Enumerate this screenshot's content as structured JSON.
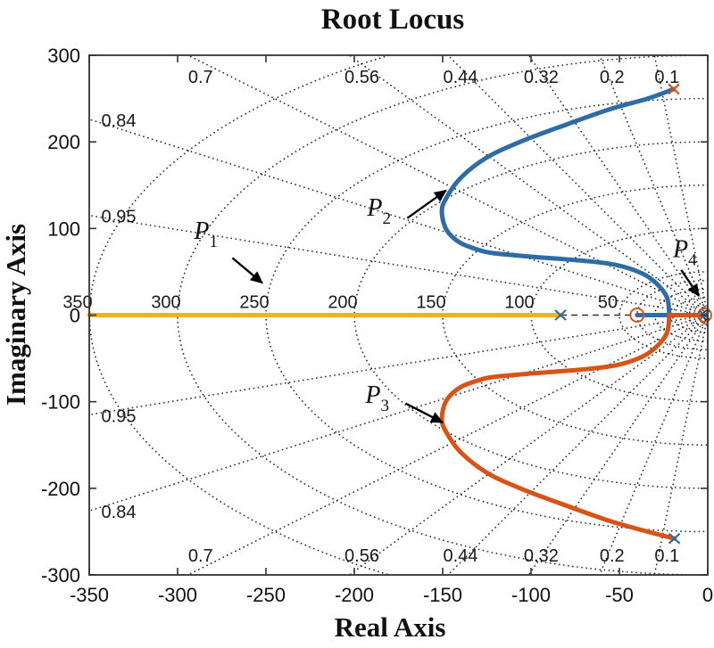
{
  "chart_data": {
    "type": "line",
    "title": "Root Locus",
    "xlabel": "Real Axis",
    "ylabel": "Imaginary Axis",
    "xlim": [
      -350,
      0
    ],
    "ylim": [
      -300,
      300
    ],
    "xticks": [
      -350,
      -300,
      -250,
      -200,
      -150,
      -100,
      -50,
      0
    ],
    "yticks": [
      -300,
      -200,
      -100,
      0,
      100,
      200,
      300
    ],
    "grid": {
      "style": "dotted",
      "damping_ratios": [
        0.1,
        0.2,
        0.32,
        0.44,
        0.56,
        0.7,
        0.84,
        0.95
      ],
      "damping_labels": [
        "0.1",
        "0.2",
        "0.32",
        "0.44",
        "0.56",
        "0.7",
        "0.84",
        "0.95"
      ],
      "natural_frequencies": [
        50,
        100,
        150,
        200,
        250,
        300,
        350
      ],
      "natural_frequency_labels": [
        "50",
        "100",
        "150",
        "200",
        "250",
        "300",
        "350"
      ],
      "natural_frequencies_minor": [
        6,
        12,
        20,
        30,
        40
      ]
    },
    "colors": {
      "branch_p1": "#EFB320",
      "branch_p2": "#2E6CA8",
      "branch_p3": "#D95319",
      "grid": "#2b2b2b",
      "annotation": "#000000",
      "dashed_axis": "#333333"
    },
    "series": [
      {
        "name": "P1",
        "color": "#EFB320",
        "width": 5,
        "points": [
          [
            -350,
            0
          ],
          [
            -83.3,
            0
          ]
        ]
      },
      {
        "name": "P2",
        "color": "#2E6CA8",
        "width": 5,
        "points": [
          [
            -19.2,
            261
          ],
          [
            -34,
            250
          ],
          [
            -55,
            238
          ],
          [
            -80,
            220
          ],
          [
            -105,
            201
          ],
          [
            -125,
            182
          ],
          [
            -140,
            158
          ],
          [
            -148,
            135
          ],
          [
            -150.5,
            120
          ],
          [
            -148,
            99
          ],
          [
            -140.5,
            84
          ],
          [
            -130,
            75.5
          ],
          [
            -121.5,
            71.5
          ],
          [
            -97.5,
            67
          ],
          [
            -72,
            63
          ],
          [
            -52,
            58
          ],
          [
            -37,
            48
          ],
          [
            -28.5,
            35.5
          ],
          [
            -23,
            20
          ],
          [
            -21.7,
            0
          ]
        ]
      },
      {
        "name": "P2-real-axis-segment",
        "color": "#2E6CA8",
        "width": 5,
        "points": [
          [
            -40,
            0
          ],
          [
            -21.7,
            0
          ]
        ]
      },
      {
        "name": "P3",
        "color": "#D95319",
        "width": 5,
        "points": [
          [
            -18.9,
            -258
          ],
          [
            -34,
            -250
          ],
          [
            -55,
            -238
          ],
          [
            -80,
            -220
          ],
          [
            -105,
            -201
          ],
          [
            -125,
            -182
          ],
          [
            -140,
            -158
          ],
          [
            -148,
            -135
          ],
          [
            -150.5,
            -120
          ],
          [
            -148,
            -99
          ],
          [
            -140.5,
            -84
          ],
          [
            -130,
            -75.5
          ],
          [
            -121.5,
            -71.5
          ],
          [
            -97.5,
            -67
          ],
          [
            -72,
            -63
          ],
          [
            -52,
            -58
          ],
          [
            -37,
            -48
          ],
          [
            -28.5,
            -35.5
          ],
          [
            -23,
            -20
          ],
          [
            -21.7,
            0
          ]
        ]
      },
      {
        "name": "P4",
        "color": "#D95319",
        "width": 5,
        "points": [
          [
            -21.7,
            0
          ],
          [
            -1.8,
            0
          ]
        ]
      }
    ],
    "dashed_axis_segment": [
      [
        -83.3,
        0
      ],
      [
        -1.8,
        0
      ]
    ],
    "markers": [
      {
        "shape": "x",
        "x": -83.3,
        "y": 0,
        "color": "#2E6CA8",
        "meaning": "open-loop pole"
      },
      {
        "shape": "x",
        "x": -19.2,
        "y": 261,
        "color": "#D95319",
        "meaning": "open-loop pole"
      },
      {
        "shape": "x",
        "x": -18.9,
        "y": -258,
        "color": "#2E6CA8",
        "meaning": "open-loop pole"
      },
      {
        "shape": "o",
        "x": -40,
        "y": 0,
        "color": "#D95319",
        "meaning": "open-loop zero"
      },
      {
        "shape": "o",
        "x": -1.8,
        "y": 0,
        "color": "#D95319",
        "meaning": "open-loop zero"
      },
      {
        "shape": "x",
        "x": -1.8,
        "y": 0,
        "color": "#2E6CA8",
        "meaning": "open-loop pole"
      }
    ],
    "annotations": [
      {
        "text": "P",
        "sub": "1",
        "x": -284,
        "y": 97,
        "arrow_from": [
          -269,
          66
        ],
        "arrow_to": [
          -252,
          37
        ]
      },
      {
        "text": "P",
        "sub": "2",
        "x": -186,
        "y": 124,
        "arrow_from": [
          -170,
          112
        ],
        "arrow_to": [
          -148,
          144
        ]
      },
      {
        "text": "P",
        "sub": "3",
        "x": -187,
        "y": -92,
        "arrow_from": [
          -171,
          -102
        ],
        "arrow_to": [
          -150,
          -124
        ]
      },
      {
        "text": "P",
        "sub": "4",
        "x": -13,
        "y": 76,
        "arrow_from": [
          -15,
          52
        ],
        "arrow_to": [
          -5,
          22
        ]
      }
    ]
  }
}
